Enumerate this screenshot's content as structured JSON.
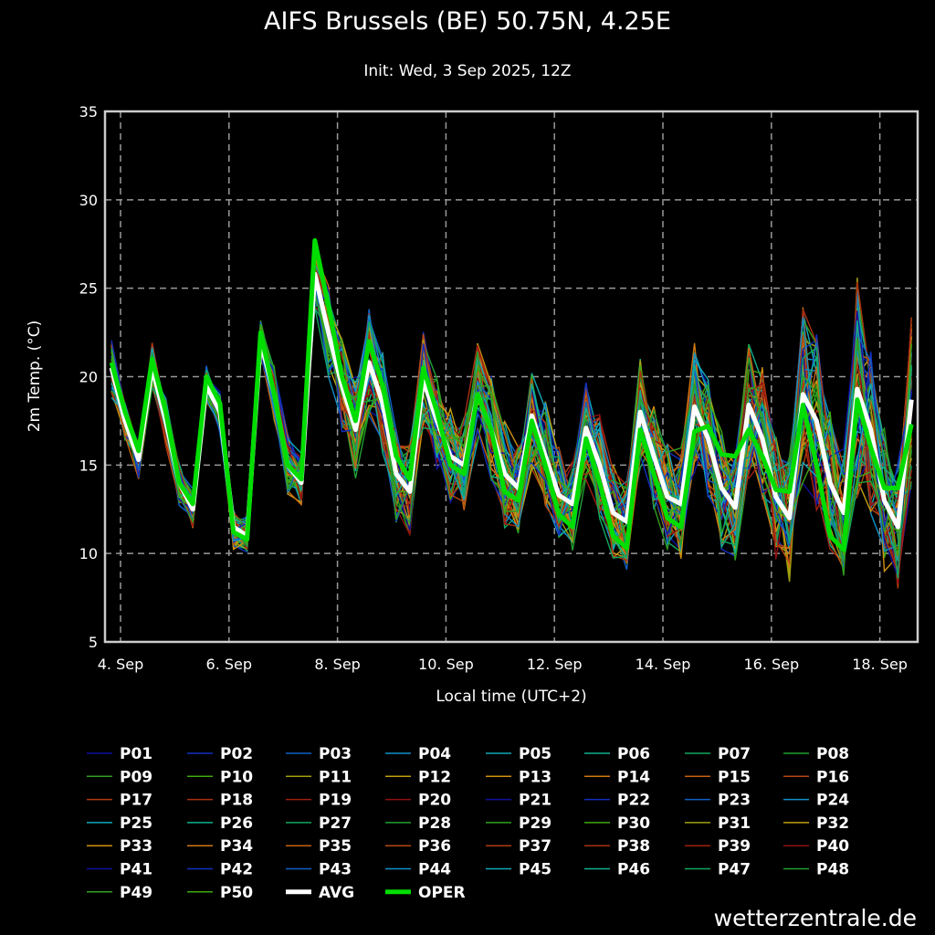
{
  "chart_data": {
    "type": "line",
    "title": "AIFS Brussels (BE) 50.75N, 4.25E",
    "subtitle": "Init: Wed, 3 Sep 2025, 12Z",
    "xlabel": "Local time (UTC+2)",
    "ylabel": "2m Temp. (°C)",
    "ylim": [
      5,
      35
    ],
    "yticks": [
      "5",
      "10",
      "15",
      "20",
      "25",
      "30",
      "35"
    ],
    "xticks": [
      "4. Sep",
      "6. Sep",
      "8. Sep",
      "10. Sep",
      "12. Sep",
      "14. Sep",
      "16. Sep",
      "18. Sep"
    ],
    "xtick_days": [
      0,
      2,
      4,
      6,
      8,
      10,
      12,
      14
    ],
    "x_start_days": -0.1667,
    "x_step_days": 0.25,
    "grid": true,
    "legend_placement": "bottom",
    "series": [
      {
        "name": "AVG",
        "color": "#ffffff",
        "values": [
          20.5,
          17.5,
          15.3,
          20.5,
          17.5,
          14,
          12.5,
          19.5,
          18,
          11.5,
          11,
          22,
          19,
          15,
          14,
          25.8,
          22.5,
          19.5,
          17,
          20.8,
          18.5,
          14.5,
          13.5,
          19.8,
          17.5,
          15.5,
          15,
          19,
          17,
          14.5,
          13.7,
          17.8,
          15.5,
          13.3,
          12.8,
          17.1,
          15,
          12.3,
          11.8,
          18,
          15.5,
          13.2,
          12.8,
          18.3,
          16.5,
          13.7,
          12.6,
          18.4,
          16.5,
          13.2,
          12,
          19,
          17.5,
          14,
          12.3,
          19.3,
          17,
          13,
          11.5,
          18.7
        ]
      },
      {
        "name": "OPER",
        "color": "#00dd00",
        "values": [
          20.8,
          18,
          15.8,
          21,
          18,
          14,
          12.8,
          20,
          18.5,
          11.2,
          10.8,
          22.5,
          19,
          15,
          14.2,
          27.7,
          24,
          20,
          17.5,
          22,
          19.5,
          15.5,
          14.2,
          20.5,
          18,
          15,
          14.5,
          19,
          17,
          13.5,
          13,
          17.5,
          15,
          12.2,
          11.5,
          16.5,
          14,
          11,
          10.3,
          17,
          14.5,
          12,
          11.5,
          16.9,
          17.2,
          15.6,
          15.5,
          17,
          15.5,
          13.6,
          13.5,
          18.4,
          15,
          11,
          10.2,
          18.7,
          16,
          13.7,
          13.7,
          17.3
        ]
      }
    ],
    "members": {
      "count": 50,
      "names": [
        "P01",
        "P02",
        "P03",
        "P04",
        "P05",
        "P06",
        "P07",
        "P08",
        "P09",
        "P10",
        "P11",
        "P12",
        "P13",
        "P14",
        "P15",
        "P16",
        "P17",
        "P18",
        "P19",
        "P20",
        "P21",
        "P22",
        "P23",
        "P24",
        "P25",
        "P26",
        "P27",
        "P28",
        "P29",
        "P30",
        "P31",
        "P32",
        "P33",
        "P34",
        "P35",
        "P36",
        "P37",
        "P38",
        "P39",
        "P40",
        "P41",
        "P42",
        "P43",
        "P44",
        "P45",
        "P46",
        "P47",
        "P48",
        "P49",
        "P50"
      ],
      "palette": [
        "#1010a0",
        "#1030c0",
        "#1060c8",
        "#1090c8",
        "#10a8b8",
        "#10b090",
        "#10a860",
        "#20a030",
        "#30a020",
        "#40a810",
        "#a0a010",
        "#c0a010",
        "#d09010",
        "#d07810",
        "#c86010",
        "#b84810",
        "#b03a10",
        "#a83010",
        "#a02010",
        "#901010"
      ],
      "spread": [
        1.5,
        1,
        1,
        1.2,
        1.2,
        1,
        1,
        1,
        1,
        1,
        1,
        1,
        1.5,
        1.5,
        1.5,
        2,
        2.5,
        2.5,
        3,
        3,
        3,
        2.5,
        2.5,
        2.5,
        2.5,
        2.5,
        2.5,
        3,
        3,
        3,
        2.5,
        3,
        3,
        2.5,
        2.5,
        3,
        3,
        2.5,
        2.5,
        3,
        3,
        3,
        3,
        3.5,
        3.5,
        3.5,
        3,
        4,
        4,
        3.5,
        3.5,
        5,
        5,
        4,
        3.5,
        6,
        5,
        4,
        3.5,
        5
      ]
    }
  },
  "credit": "wetterzentrale.de"
}
